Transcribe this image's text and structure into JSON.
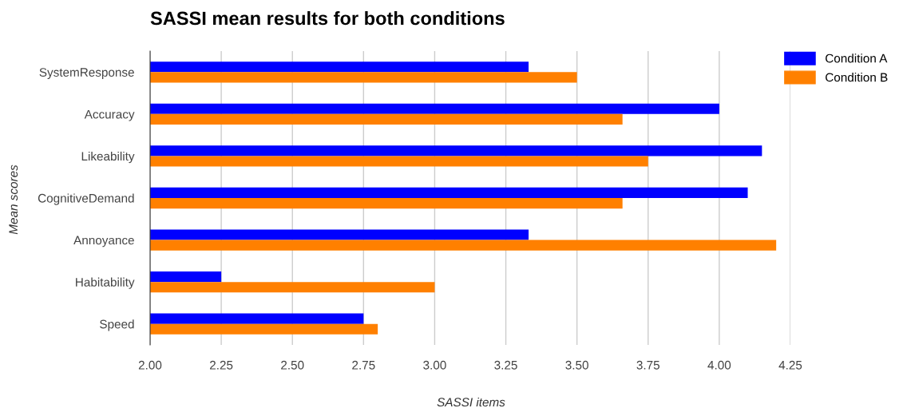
{
  "chart_data": {
    "type": "bar",
    "orientation": "horizontal",
    "title": "SASSI mean results for both conditions",
    "xlabel": "SASSI items",
    "ylabel": "Mean scores",
    "categories": [
      "SystemResponse",
      "Accuracy",
      "Likeability",
      "CognitiveDemand",
      "Annoyance",
      "Habitability",
      "Speed"
    ],
    "series": [
      {
        "name": "Condition A",
        "color": "#0000ff",
        "values": [
          3.33,
          4.0,
          4.15,
          4.1,
          3.33,
          2.25,
          2.75
        ]
      },
      {
        "name": "Condition B",
        "color": "#ff8000",
        "values": [
          3.5,
          3.66,
          3.75,
          3.66,
          4.2,
          3.0,
          2.8
        ]
      }
    ],
    "xlim": [
      2.0,
      4.25
    ],
    "xticks": [
      {
        "value": 2.0,
        "label": "2.00"
      },
      {
        "value": 2.25,
        "label": "2.25"
      },
      {
        "value": 2.5,
        "label": "2.50"
      },
      {
        "value": 2.75,
        "label": "2.75"
      },
      {
        "value": 3.0,
        "label": "3.00"
      },
      {
        "value": 3.25,
        "label": "3.25"
      },
      {
        "value": 3.5,
        "label": "3.50"
      },
      {
        "value": 3.75,
        "label": "3.75"
      },
      {
        "value": 4.0,
        "label": "4.00"
      },
      {
        "value": 4.25,
        "label": "4.25"
      }
    ],
    "grid": "x",
    "legend": "top right"
  }
}
